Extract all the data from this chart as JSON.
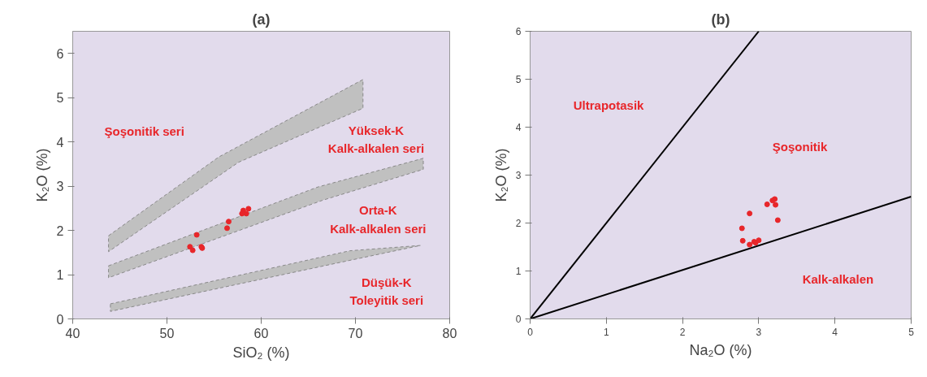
{
  "chart_data": [
    {
      "type": "scatter",
      "title": "(a)",
      "xlabel": "SiO₂ (%)",
      "ylabel": "K₂O (%)",
      "xlim": [
        40,
        80
      ],
      "ylim": [
        0,
        6.5
      ],
      "xticks": [
        40,
        50,
        60,
        70,
        80
      ],
      "yticks": [
        0,
        1,
        2,
        3,
        4,
        5,
        6
      ],
      "grid": false,
      "series": [
        {
          "type": "area",
          "color": "#c0c0c0",
          "line_style": "dashed",
          "x": [
            43.8,
            55.5,
            70.8,
            70.8,
            57.6,
            43.8
          ],
          "values": [
            1.88,
            3.66,
            5.41,
            4.76,
            3.54,
            1.52
          ]
        },
        {
          "type": "area",
          "color": "#c0c0c0",
          "line_style": "dashed",
          "x": [
            43.8,
            66,
            77.2,
            77.2,
            66.5,
            43.8
          ],
          "values": [
            1.2,
            2.98,
            3.63,
            3.38,
            2.68,
            0.93
          ]
        },
        {
          "type": "area",
          "color": "#c0c0c0",
          "line_style": "dashed",
          "x": [
            44,
            69.4,
            76.9,
            68,
            44
          ],
          "values": [
            0.34,
            1.54,
            1.66,
            1.26,
            0.17
          ]
        },
        {
          "color": "#e8262a",
          "marker": "circle",
          "x": [
            52.44,
            52.73,
            53.65,
            53.74,
            53.16,
            56.55,
            56.38,
            58.1,
            58.65,
            57.96,
            58.42
          ],
          "values": [
            1.63,
            1.55,
            1.63,
            1.6,
            1.9,
            2.2,
            2.05,
            2.45,
            2.49,
            2.38,
            2.38
          ]
        }
      ],
      "annotations": [
        "Şoşonitik seri",
        "Yüksek-K\nKalk-alkalen seri",
        "Orta-K\nKalk-alkalen seri",
        "Düşük-K\nToleyitik seri"
      ]
    },
    {
      "type": "scatter",
      "title": "(b)",
      "xlabel": "Na₂O (%)",
      "ylabel": "K₂O (%)",
      "xlim": [
        0,
        5
      ],
      "ylim": [
        0,
        6
      ],
      "xticks": [
        0,
        1,
        2,
        3,
        4,
        5
      ],
      "yticks": [
        0,
        1,
        2,
        3,
        4,
        5,
        6
      ],
      "grid": false,
      "series": [
        {
          "type": "line",
          "color": "#000000",
          "x": [
            0,
            3
          ],
          "values": [
            0,
            6
          ]
        },
        {
          "type": "line",
          "color": "#000000",
          "x": [
            0,
            5
          ],
          "values": [
            0,
            2.55
          ]
        },
        {
          "color": "#e8262a",
          "marker": "circle",
          "x": [
            3.11,
            3.18,
            3.21,
            3.22,
            2.88,
            3.25,
            2.78,
            2.79,
            2.88,
            2.96,
            3.0,
            2.94
          ],
          "values": [
            2.39,
            2.47,
            2.5,
            2.38,
            2.2,
            2.06,
            1.89,
            1.63,
            1.55,
            1.59,
            1.64,
            1.61
          ]
        }
      ],
      "annotations": [
        "Ultrapotasik",
        "Şoşonitik",
        "Kalk-alkalen"
      ]
    }
  ]
}
